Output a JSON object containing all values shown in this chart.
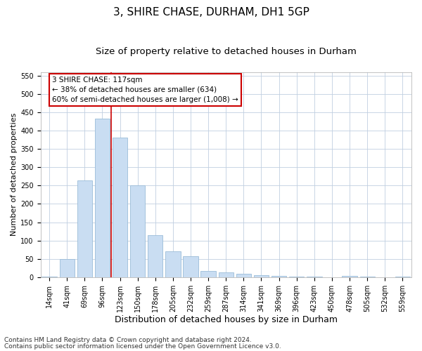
{
  "title1": "3, SHIRE CHASE, DURHAM, DH1 5GP",
  "title2": "Size of property relative to detached houses in Durham",
  "xlabel": "Distribution of detached houses by size in Durham",
  "ylabel": "Number of detached properties",
  "categories": [
    "14sqm",
    "41sqm",
    "69sqm",
    "96sqm",
    "123sqm",
    "150sqm",
    "178sqm",
    "205sqm",
    "232sqm",
    "259sqm",
    "287sqm",
    "314sqm",
    "341sqm",
    "369sqm",
    "396sqm",
    "423sqm",
    "450sqm",
    "478sqm",
    "505sqm",
    "532sqm",
    "559sqm"
  ],
  "values": [
    2,
    50,
    265,
    433,
    380,
    250,
    115,
    70,
    58,
    17,
    14,
    9,
    6,
    4,
    2,
    2,
    0,
    4,
    2,
    0,
    2
  ],
  "bar_color": "#c9ddf2",
  "bar_edgecolor": "#9bbcd8",
  "vline_x_index": 3.5,
  "vline_color": "#cc0000",
  "annotation_text": "3 SHIRE CHASE: 117sqm\n← 38% of detached houses are smaller (634)\n60% of semi-detached houses are larger (1,008) →",
  "annotation_box_color": "#ffffff",
  "annotation_box_edgecolor": "#cc0000",
  "ylim": [
    0,
    560
  ],
  "yticks": [
    0,
    50,
    100,
    150,
    200,
    250,
    300,
    350,
    400,
    450,
    500,
    550
  ],
  "background_color": "#ffffff",
  "grid_color": "#c0cfe0",
  "footer1": "Contains HM Land Registry data © Crown copyright and database right 2024.",
  "footer2": "Contains public sector information licensed under the Open Government Licence v3.0.",
  "title1_fontsize": 11,
  "title2_fontsize": 9.5,
  "xlabel_fontsize": 9,
  "ylabel_fontsize": 8,
  "tick_fontsize": 7,
  "footer_fontsize": 6.5,
  "annotation_fontsize": 7.5
}
